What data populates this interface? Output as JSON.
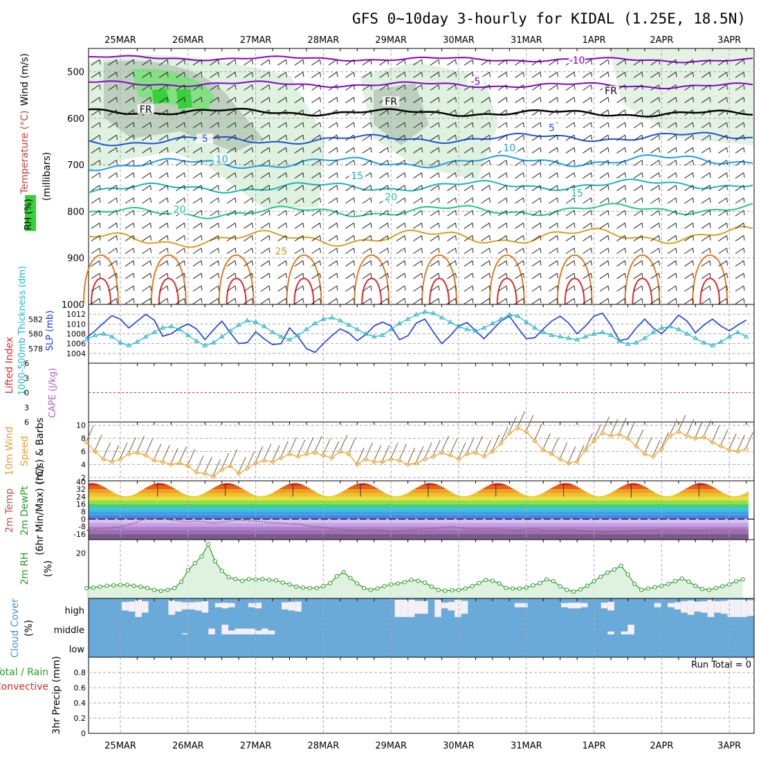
{
  "title": "GFS 0~10day 3-hourly for KIDAL (1.25E, 18.5N)",
  "date_labels": [
    "25MAR",
    "26MAR",
    "27MAR",
    "28MAR",
    "29MAR",
    "30MAR",
    "31MAR",
    "1APR",
    "2APR",
    "3APR"
  ],
  "colors": {
    "temp_cold": "#8800c8",
    "temp_cool": "#1e50dc",
    "temp_mild": "#1aa0e6",
    "temp_warm": "#18b4b4",
    "temp_warmer": "#1ec88c",
    "temp_hot": "#d8a020",
    "temp_hotter": "#e07820",
    "temp_hottest": "#e02828",
    "slp": "#1a3ad8",
    "thickness": "#20b4c8",
    "wind_speed": "#e8a030",
    "rh2m": "#2a9a2a",
    "cloud_bg": "#6aaad8",
    "cloud_fill": "#f4f0f4",
    "rh_fill_light": "#dcefdc",
    "rh_fill_mid": "#b4c8b4",
    "rh_fill_high": "#38d038"
  },
  "chart_data": [
    {
      "type": "line",
      "name": "upper-air",
      "ylabel_wind": "Wind (m/s)",
      "ylabel_temp": "Temperature (°C)",
      "ylabel_rh": "RH (%)",
      "ylabel_p": "(millibars)",
      "ylim": [
        1000,
        450
      ],
      "y_ticks": [
        500,
        600,
        700,
        800,
        900,
        1000
      ],
      "freezing_label": "FR",
      "contour_labels": [
        {
          "text": "-10",
          "x": "31MAR 18Z",
          "p": 480,
          "color_key": "temp_cold"
        },
        {
          "text": "-5",
          "x": "30MAR 06Z",
          "p": 525,
          "color_key": "temp_cold"
        },
        {
          "text": "FR",
          "x": "25MAR 09Z",
          "p": 585,
          "color_key": "black"
        },
        {
          "text": "FR",
          "x": "29MAR 00Z",
          "p": 568,
          "color_key": "black"
        },
        {
          "text": "FR",
          "x": "1APR 06Z",
          "p": 545,
          "color_key": "black"
        },
        {
          "text": "5",
          "x": "26MAR 06Z",
          "p": 648,
          "color_key": "temp_cool"
        },
        {
          "text": "5",
          "x": "31MAR 09Z",
          "p": 625,
          "color_key": "temp_cool"
        },
        {
          "text": "10",
          "x": "26MAR 12Z",
          "p": 692,
          "color_key": "temp_mild"
        },
        {
          "text": "10",
          "x": "30MAR 18Z",
          "p": 668,
          "color_key": "temp_mild"
        },
        {
          "text": "15",
          "x": "28MAR 12Z",
          "p": 728,
          "color_key": "temp_warm"
        },
        {
          "text": "15",
          "x": "31MAR 18Z",
          "p": 765,
          "color_key": "temp_warm"
        },
        {
          "text": "20",
          "x": "25MAR 21Z",
          "p": 800,
          "color_key": "temp_warmer"
        },
        {
          "text": "20",
          "x": "29MAR 00Z",
          "p": 773,
          "color_key": "temp_warmer"
        },
        {
          "text": "25",
          "x": "27MAR 09Z",
          "p": 890,
          "color_key": "temp_hot"
        }
      ]
    },
    {
      "type": "line",
      "name": "pressure-thickness",
      "ylabel_thick": "1000-500mb Thickness (dm)",
      "ylabel_slp": "SLP (mb)",
      "thick_ticks": [
        578,
        580,
        582
      ],
      "slp_ticks": [
        1004,
        1006,
        1008,
        1010,
        1012
      ],
      "series": [
        {
          "name": "SLP (mb)",
          "values": [
            1007.2,
            1008.6,
            1010.2,
            1011.7,
            1011.0,
            1009.2,
            1010.6,
            1012.0,
            1010.8,
            1007.5,
            1008.0,
            1009.2,
            1010.0,
            1009.0,
            1006.8,
            1008.8,
            1010.6,
            1008.2,
            1006.0,
            1006.2,
            1008.4,
            1007.0,
            1005.8,
            1006.0,
            1009.2,
            1007.4,
            1005.0,
            1004.2,
            1006.0,
            1007.6,
            1009.0,
            1008.2,
            1006.6,
            1007.8,
            1009.6,
            1010.4,
            1009.6,
            1006.8,
            1007.6,
            1010.2,
            1011.0,
            1008.4,
            1006.0,
            1007.6,
            1009.6,
            1010.3,
            1008.6,
            1007.0,
            1008.8,
            1010.6,
            1011.6,
            1009.2,
            1007.0,
            1007.2,
            1009.0,
            1010.6,
            1011.6,
            1010.2,
            1008.0,
            1009.6,
            1011.6,
            1012.2,
            1009.8,
            1006.6,
            1007.0,
            1009.2,
            1011.0,
            1009.2,
            1008.0,
            1009.8,
            1011.8,
            1010.6,
            1008.2,
            1009.8,
            1011.0,
            1009.6,
            1008.6,
            1009.8,
            1010.8
          ]
        },
        {
          "name": "1000-500mb Thickness (dm)",
          "values": [
            579.2,
            579.8,
            580.0,
            579.6,
            578.8,
            578.4,
            578.9,
            579.6,
            580.2,
            580.8,
            581.0,
            580.6,
            579.8,
            579.0,
            578.4,
            578.8,
            579.6,
            580.4,
            581.2,
            581.8,
            581.6,
            581.0,
            580.2,
            579.6,
            579.2,
            579.8,
            580.6,
            581.4,
            582.0,
            582.2,
            581.8,
            581.2,
            580.6,
            580.0,
            579.6,
            579.8,
            580.6,
            581.4,
            582.0,
            582.6,
            583.0,
            582.8,
            582.2,
            581.6,
            581.0,
            580.6,
            580.4,
            580.8,
            581.4,
            582.0,
            582.6,
            582.4,
            581.6,
            580.8,
            580.2,
            579.8,
            579.6,
            579.4,
            579.2,
            579.6,
            580.0,
            580.2,
            579.8,
            579.0,
            578.6,
            578.8,
            579.4,
            580.2,
            580.8,
            581.0,
            580.6,
            580.0,
            579.4,
            578.8,
            578.4,
            578.9,
            579.6,
            580.2,
            579.6
          ]
        }
      ]
    },
    {
      "type": "line",
      "name": "stability",
      "ylabel_li": "Lifted Index",
      "ylabel_cape": "CAPE (J/kg)",
      "li_ticks": [
        6,
        3,
        0,
        -3,
        -6
      ],
      "li_tick_labels": [
        "6",
        "3",
        "0",
        "3",
        "6"
      ]
    },
    {
      "type": "line",
      "name": "10m-wind",
      "ylabel": "10m Wind Speed (m/s) & Barbs",
      "ylabel_a": "10m Wind",
      "ylabel_b": "Speed",
      "ylabel_c": "(m/s) & Barbs",
      "y_ticks": [
        2,
        4,
        6,
        8,
        10
      ],
      "ylim": [
        1.5,
        10.5
      ],
      "values": [
        7.4,
        6.0,
        4.8,
        4.4,
        4.8,
        5.6,
        5.8,
        5.4,
        4.6,
        4.4,
        4.0,
        4.2,
        3.8,
        2.8,
        2.6,
        2.2,
        3.2,
        3.8,
        2.6,
        3.4,
        4.2,
        4.6,
        4.4,
        5.0,
        5.6,
        5.2,
        5.6,
        5.8,
        5.4,
        5.0,
        6.0,
        5.6,
        4.0,
        4.8,
        4.4,
        4.4,
        4.8,
        4.6,
        4.0,
        4.2,
        4.8,
        5.2,
        5.8,
        5.4,
        4.8,
        5.6,
        5.8,
        5.2,
        6.0,
        7.2,
        8.8,
        9.6,
        9.0,
        7.6,
        6.2,
        5.6,
        4.8,
        4.2,
        4.4,
        6.2,
        7.6,
        8.8,
        8.4,
        8.6,
        8.0,
        6.8,
        5.6,
        5.2,
        6.4,
        8.4,
        9.0,
        8.4,
        8.0,
        8.2,
        7.4,
        6.8,
        6.2,
        6.0,
        6.4
      ]
    },
    {
      "type": "area",
      "name": "2m-temp",
      "ylabel_a": "2m Temp",
      "ylabel_b": "2m DewPt",
      "ylabel_c": "(6hr Min/Max) (°C)",
      "y_ticks": [
        40,
        32,
        24,
        16,
        8,
        0,
        -8,
        -16
      ],
      "ylim": [
        -22,
        41
      ],
      "temp_max": [
        39,
        38,
        37,
        38,
        39,
        38,
        38,
        37,
        39
      ],
      "temp_min": [
        24,
        25,
        24,
        24,
        24,
        24,
        24,
        23,
        24
      ],
      "dewpt": [
        -12,
        -11,
        -10,
        -9,
        -8,
        -6,
        -3,
        0,
        1,
        1,
        -1,
        -2,
        -3,
        -2,
        -3,
        -4,
        -3,
        -2,
        -1,
        -2,
        -2,
        -3,
        -4,
        -4,
        -5,
        -5,
        -7,
        -8,
        -9,
        -10,
        -11,
        -12,
        -12,
        -12,
        -11,
        -12,
        -13,
        -13,
        -12,
        -11,
        -10,
        -10,
        -9,
        -8,
        -9,
        -10,
        -11,
        -10,
        -10,
        -11,
        -12,
        -12,
        -11,
        -10,
        -12,
        -13,
        -12,
        -11,
        -12,
        -13,
        -13,
        -14,
        -14,
        -13,
        -13,
        -12,
        -12,
        -12,
        -11,
        -11,
        -11,
        -12,
        -12,
        -12,
        -11,
        -11,
        -11,
        -11,
        -11
      ]
    },
    {
      "type": "area",
      "name": "2m-rh",
      "ylabel_a": "2m RH",
      "ylabel_b": "(%)",
      "y_ticks": [
        20
      ],
      "ylim": [
        0,
        26
      ],
      "values": [
        4.5,
        4.8,
        5.2,
        5.6,
        5.8,
        6.0,
        6.0,
        5.6,
        5.2,
        4.6,
        3.8,
        3.4,
        3.8,
        4.6,
        7.4,
        12.4,
        15.6,
        18.6,
        24.0,
        16.4,
        12.2,
        9.4,
        8.6,
        7.8,
        8.6,
        8.4,
        8.6,
        8.2,
        8.0,
        7.0,
        6.2,
        5.2,
        4.8,
        4.6,
        4.6,
        5.4,
        6.8,
        9.8,
        11.6,
        9.0,
        6.6,
        4.6,
        3.8,
        4.4,
        5.4,
        6.2,
        6.6,
        7.2,
        8.2,
        7.8,
        7.0,
        5.2,
        3.8,
        3.4,
        3.6,
        3.8,
        4.4,
        5.4,
        6.8,
        8.2,
        7.8,
        6.6,
        4.6,
        4.4,
        4.4,
        4.8,
        5.8,
        6.8,
        8.4,
        7.6,
        5.4,
        3.8,
        3.0,
        4.0,
        5.6,
        7.6,
        9.6,
        11.4,
        12.8,
        14.4,
        10.6,
        6.4,
        3.8,
        4.4,
        5.0,
        5.6,
        6.4,
        7.6,
        8.8,
        7.4,
        5.6,
        4.2,
        3.8,
        4.6,
        5.4,
        6.2,
        7.6,
        8.4
      ]
    },
    {
      "type": "bar",
      "name": "cloud-cover",
      "ylabel_a": "Cloud Cover",
      "ylabel_b": "(%)",
      "levels": [
        "high",
        "middle",
        "low"
      ],
      "high": [
        0,
        0,
        0,
        0,
        0,
        40,
        50,
        100,
        60,
        0,
        0,
        0,
        80,
        50,
        30,
        30,
        40,
        60,
        0,
        10,
        20,
        10,
        0,
        0,
        10,
        20,
        0,
        0,
        0,
        30,
        40,
        50,
        0,
        0,
        0,
        0,
        0,
        0,
        0,
        0,
        0,
        0,
        0,
        0,
        0,
        0,
        100,
        100,
        100,
        70,
        70,
        0,
        100,
        20,
        40,
        100,
        70,
        0,
        0,
        0,
        0,
        0,
        0,
        0,
        10,
        10,
        0,
        0,
        0,
        0,
        0,
        10,
        20,
        20,
        10,
        0,
        0,
        20,
        40,
        0,
        0,
        0,
        0,
        0,
        0,
        10,
        0,
        10,
        30,
        60,
        80,
        50,
        60,
        100,
        60,
        70,
        100,
        100,
        100,
        90
      ],
      "middle": [
        0,
        0,
        0,
        0,
        0,
        0,
        0,
        0,
        0,
        0,
        0,
        0,
        0,
        0,
        0,
        0,
        0,
        0,
        0,
        0,
        0,
        0,
        0,
        0,
        0,
        0,
        0,
        0,
        0,
        0,
        0,
        0,
        0,
        0,
        0,
        0,
        0,
        0,
        0,
        0,
        0,
        0,
        0,
        0,
        0,
        0,
        0,
        0,
        0,
        0,
        0,
        0,
        0,
        0,
        0,
        0,
        0,
        0,
        0,
        0,
        0,
        0,
        0,
        0,
        0,
        0,
        0,
        0,
        0,
        0,
        0,
        0,
        0,
        0,
        0,
        0,
        0,
        0,
        0,
        0,
        0,
        0,
        0,
        0,
        0,
        0,
        0,
        0,
        0,
        0,
        0,
        0,
        0,
        0,
        0,
        0,
        0,
        0,
        0,
        0
      ],
      "mid_fill": [
        0,
        0,
        0,
        0,
        0,
        0,
        0,
        0,
        0,
        0,
        0,
        0,
        0,
        0,
        10,
        0,
        0,
        0,
        60,
        0,
        100,
        40,
        60,
        60,
        60,
        40,
        60,
        40,
        0,
        0,
        0,
        0,
        0,
        0,
        0,
        0,
        0,
        0,
        0,
        0,
        0,
        0,
        0,
        0,
        0,
        0,
        0,
        0,
        0,
        0,
        0,
        0,
        0,
        0,
        0,
        0,
        0,
        0,
        0,
        0,
        0,
        0,
        0,
        0,
        0,
        0,
        0,
        0,
        0,
        0,
        0,
        0,
        0,
        0,
        0,
        0,
        0,
        0,
        30,
        0,
        30,
        100,
        0,
        0,
        0,
        0,
        0,
        0,
        0,
        0,
        0,
        0,
        0,
        0,
        0,
        0,
        0,
        0,
        0,
        0
      ]
    },
    {
      "type": "bar",
      "name": "precip",
      "ylabel_a": "Total / Rain",
      "ylabel_b": "Convective",
      "ylabel_c": "3hr Precip (mm)",
      "y_ticks": [
        0,
        0.2,
        0.4,
        0.6,
        0.8
      ],
      "y_tick_labels": [
        "0",
        "0.2",
        "0.4",
        "0.6",
        "0.8"
      ],
      "ylim": [
        0,
        1.0
      ],
      "run_total": "Run Total = 0",
      "values": []
    }
  ]
}
